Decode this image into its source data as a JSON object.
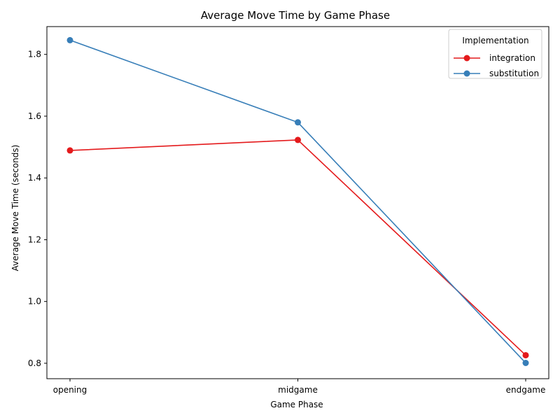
{
  "chart_data": {
    "type": "line",
    "title": "Average Move Time by Game Phase",
    "xlabel": "Game Phase",
    "ylabel": "Average Move Time (seconds)",
    "categories": [
      "opening",
      "midgame",
      "endgame"
    ],
    "ylim": [
      0.75,
      1.89
    ],
    "yticks": [
      0.8,
      1.0,
      1.2,
      1.4,
      1.6,
      1.8
    ],
    "ytick_labels": [
      "0.8",
      "1.0",
      "1.2",
      "1.4",
      "1.6",
      "1.8"
    ],
    "grid": false,
    "legend": {
      "title": "Implementation",
      "placement": "top-right"
    },
    "series": [
      {
        "name": "integration",
        "color": "#e41a1c",
        "marker": "circle",
        "values": [
          1.489,
          1.523,
          0.826
        ]
      },
      {
        "name": "substitution",
        "color": "#377eb8",
        "marker": "circle",
        "values": [
          1.846,
          1.58,
          0.801
        ]
      }
    ]
  }
}
